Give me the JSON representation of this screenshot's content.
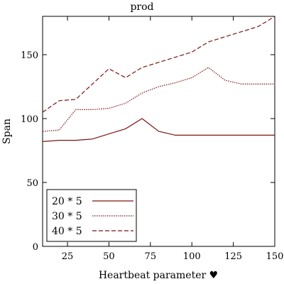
{
  "chart_data": {
    "type": "line",
    "title": "prod",
    "xlabel": "Heartbeat parameter ♥",
    "ylabel": "Span",
    "xlim": [
      10,
      150
    ],
    "ylim": [
      0,
      180
    ],
    "x_ticks": [
      25,
      50,
      75,
      100,
      125,
      150
    ],
    "y_ticks": [
      0,
      50,
      100,
      150
    ],
    "x_tick_labels": [
      "25",
      "50",
      "75",
      "100",
      "125",
      "150"
    ],
    "y_tick_labels": [
      "0",
      "50",
      "100",
      "150"
    ],
    "grid": false,
    "legend_position": "bottom-left",
    "line_color": "#7a1515",
    "series": [
      {
        "name": "20 * 5",
        "style": "solid",
        "x": [
          10,
          20,
          30,
          40,
          50,
          60,
          70,
          80,
          90,
          100,
          110,
          120,
          130,
          140,
          150
        ],
        "y": [
          82,
          83,
          83,
          84,
          88,
          92,
          100,
          90,
          87,
          87,
          87,
          87,
          87,
          87,
          87
        ]
      },
      {
        "name": "30 * 5",
        "style": "dotted",
        "x": [
          10,
          20,
          30,
          40,
          50,
          60,
          70,
          80,
          90,
          100,
          110,
          120,
          130,
          140,
          150
        ],
        "y": [
          90,
          91,
          107,
          107,
          108,
          112,
          120,
          125,
          128,
          132,
          140,
          130,
          127,
          127,
          127
        ]
      },
      {
        "name": "40 * 5",
        "style": "dashed",
        "x": [
          10,
          20,
          30,
          40,
          50,
          60,
          70,
          80,
          90,
          100,
          110,
          120,
          130,
          140,
          150
        ],
        "y": [
          105,
          114,
          115,
          127,
          139,
          132,
          140,
          144,
          148,
          152,
          160,
          164,
          168,
          172,
          180
        ]
      }
    ]
  }
}
